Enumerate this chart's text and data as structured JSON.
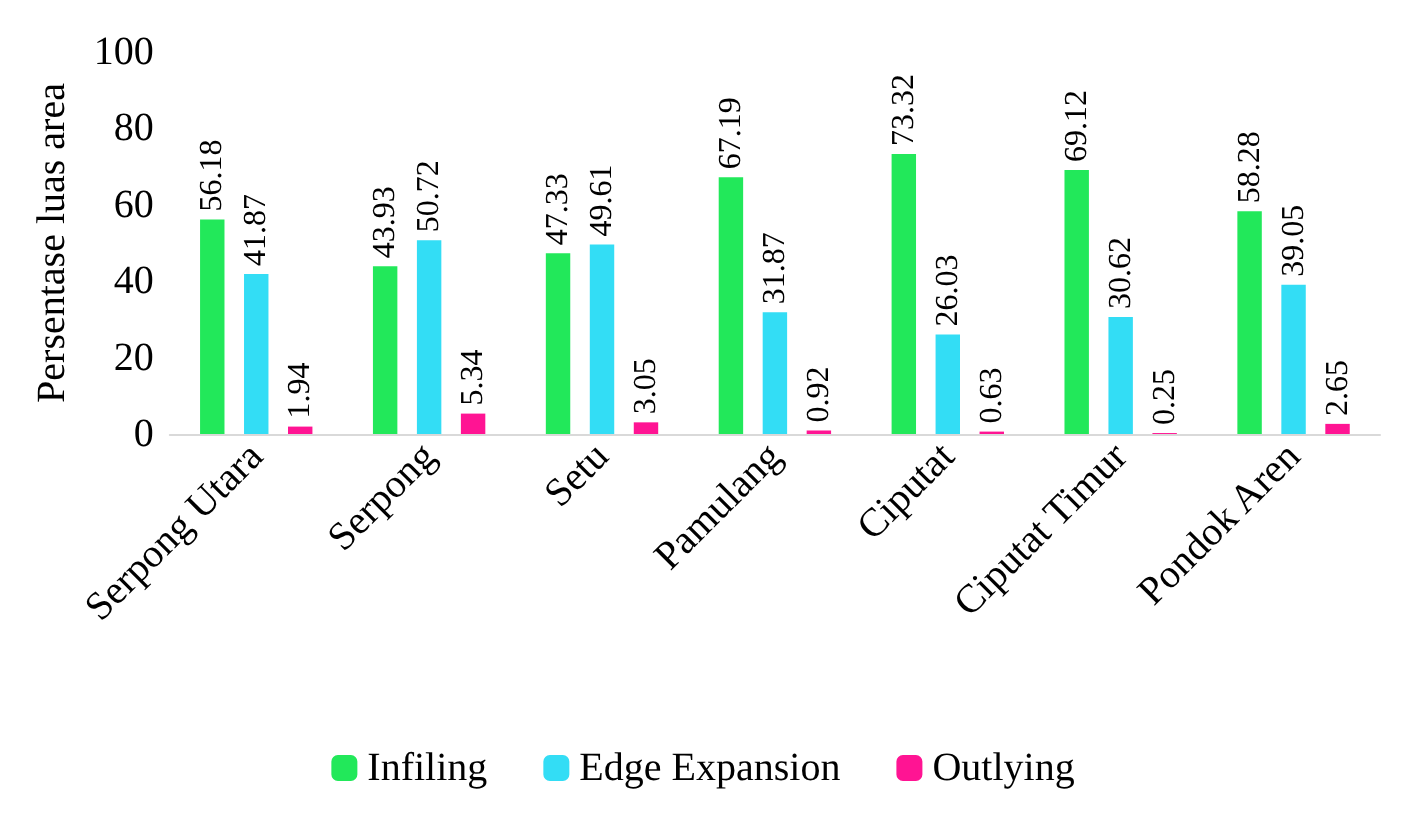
{
  "chart_data": {
    "type": "bar",
    "ylabel": "Persentase luas area",
    "categories": [
      "Serpong Utara",
      "Serpong",
      "Setu",
      "Pamulang",
      "Ciputat",
      "Ciputat Timur",
      "Pondok Aren"
    ],
    "series": [
      {
        "name": "Infiling",
        "color": "#22e85a",
        "values": [
          56.18,
          43.93,
          47.33,
          67.19,
          73.32,
          69.12,
          58.28
        ]
      },
      {
        "name": "Edge Expansion",
        "color": "#33ddf5",
        "values": [
          41.87,
          50.72,
          49.61,
          31.87,
          26.03,
          30.62,
          39.05
        ]
      },
      {
        "name": "Outlying",
        "color": "#ff1493",
        "values": [
          1.94,
          5.34,
          3.05,
          0.92,
          0.63,
          0.25,
          2.65
        ]
      }
    ],
    "ylim": [
      0,
      100
    ],
    "yticks": [
      0,
      20,
      40,
      60,
      80,
      100
    ],
    "grid": false,
    "legend": "bottom",
    "data_labels": true
  }
}
